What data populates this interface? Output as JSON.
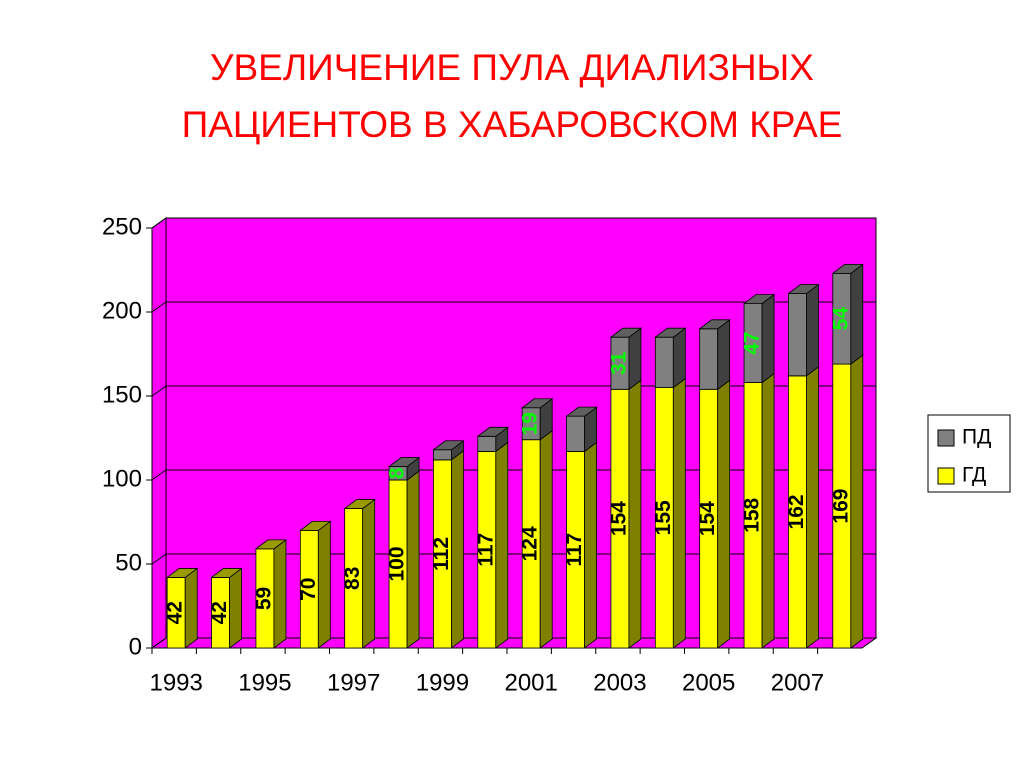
{
  "chart_data": {
    "type": "bar3d_stacked",
    "title": [
      "УВЕЛИЧЕНИЕ ПУЛА ДИАЛИЗНЫХ",
      "ПАЦИЕНТОВ В ХАБАРОВСКОМ КРАЕ"
    ],
    "categories": [
      "1993",
      null,
      "1995",
      null,
      "1997",
      null,
      "1999",
      null,
      "2001",
      null,
      "2003",
      null,
      "2005",
      null,
      "2007",
      null
    ],
    "series": [
      {
        "name": "ГД",
        "color": "#ffff00",
        "values": [
          42,
          42,
          59,
          70,
          83,
          100,
          112,
          117,
          124,
          117,
          154,
          155,
          154,
          158,
          162,
          169
        ]
      },
      {
        "name": "ПД",
        "color": "#808080",
        "values": [
          0,
          0,
          0,
          0,
          0,
          8,
          6,
          9,
          19,
          21,
          31,
          30,
          36,
          47,
          49,
          54
        ],
        "value_labels": [
          null,
          null,
          null,
          null,
          null,
          "8",
          null,
          null,
          "19",
          null,
          "31",
          null,
          null,
          "47",
          null,
          "54"
        ]
      }
    ],
    "ylim": [
      0,
      250
    ],
    "yticks": [
      0,
      50,
      100,
      150,
      200,
      250
    ],
    "grid": true,
    "wall_color": "#ff00ff",
    "legend": "right"
  }
}
